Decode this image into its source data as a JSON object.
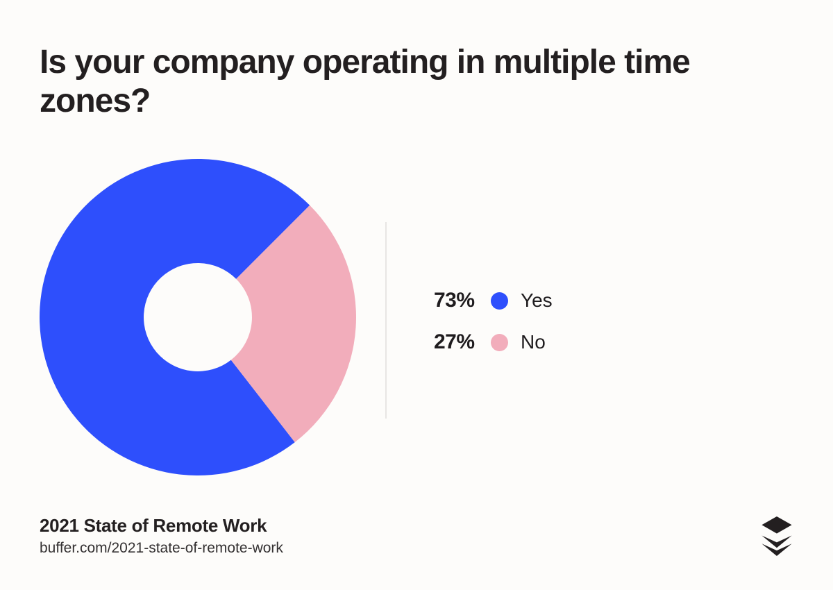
{
  "title": "Is your company operating in multiple time\nzones?",
  "chart_data": {
    "type": "pie",
    "subtype": "donut",
    "title": "Is your company operating in multiple time zones?",
    "categories": [
      "Yes",
      "No"
    ],
    "values": [
      73,
      27
    ],
    "unit": "percent",
    "colors": [
      "#2e4ffc",
      "#f2adbb"
    ],
    "start_angle_deg": 142.2,
    "inner_radius_ratio": 0.342,
    "legend_position": "right",
    "data_labels": [
      "73%",
      "27%"
    ]
  },
  "legend": {
    "items": [
      {
        "value": "73%",
        "label": "Yes",
        "color": "#2e4ffc"
      },
      {
        "value": "27%",
        "label": "No",
        "color": "#f2adbb"
      }
    ]
  },
  "footer": {
    "source_title": "2021 State of Remote Work",
    "source_url": "buffer.com/2021-state-of-remote-work"
  },
  "branding": {
    "logo": "buffer-logo",
    "logo_color": "#231f20"
  },
  "theme": {
    "background": "#fdfcfa",
    "text": "#231f20",
    "divider": "#e8e6e4"
  }
}
